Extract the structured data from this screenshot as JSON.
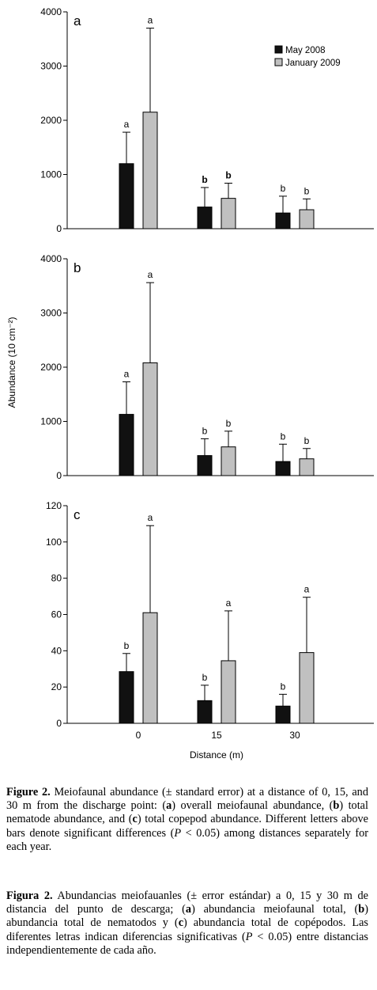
{
  "chart_data": [
    {
      "type": "bar",
      "panel_label": "a",
      "categories": [
        "0",
        "15",
        "30"
      ],
      "ylim": [
        0,
        4000
      ],
      "yticks": [
        "0",
        "1000",
        "2000",
        "3000",
        "4000"
      ],
      "series": [
        {
          "name": "May 2008",
          "color": "#111111",
          "values": [
            1200,
            400,
            290
          ],
          "errors": [
            580,
            360,
            310
          ],
          "sig": [
            "a",
            "b",
            "b"
          ],
          "sig_bold": [
            false,
            true,
            false
          ]
        },
        {
          "name": "January 2009",
          "color": "#c0c0c0",
          "values": [
            2150,
            560,
            350
          ],
          "errors": [
            1550,
            280,
            200
          ],
          "sig": [
            "a",
            "b",
            "b"
          ],
          "sig_bold": [
            false,
            true,
            false
          ]
        }
      ],
      "legend": {
        "position": "top-right"
      }
    },
    {
      "type": "bar",
      "panel_label": "b",
      "categories": [
        "0",
        "15",
        "30"
      ],
      "ylim": [
        0,
        4000
      ],
      "yticks": [
        "0",
        "1000",
        "2000",
        "3000",
        "4000"
      ],
      "series": [
        {
          "name": "May 2008",
          "color": "#111111",
          "values": [
            1130,
            370,
            260
          ],
          "errors": [
            600,
            310,
            320
          ],
          "sig": [
            "a",
            "b",
            "b"
          ]
        },
        {
          "name": "January 2009",
          "color": "#c0c0c0",
          "values": [
            2080,
            530,
            310
          ],
          "errors": [
            1480,
            290,
            190
          ],
          "sig": [
            "a",
            "b",
            "b"
          ]
        }
      ]
    },
    {
      "type": "bar",
      "panel_label": "c",
      "categories": [
        "0",
        "15",
        "30"
      ],
      "ylim": [
        0,
        120
      ],
      "yticks": [
        "0",
        "20",
        "40",
        "60",
        "80",
        "100",
        "120"
      ],
      "series": [
        {
          "name": "May 2008",
          "color": "#111111",
          "values": [
            28.5,
            12.5,
            9.5
          ],
          "errors": [
            10,
            8.5,
            6.5
          ],
          "sig": [
            "b",
            "b",
            "b"
          ]
        },
        {
          "name": "January 2009",
          "color": "#c0c0c0",
          "values": [
            61,
            34.5,
            39
          ],
          "errors": [
            48,
            27.5,
            30.5
          ],
          "sig": [
            "a",
            "a",
            "a"
          ]
        }
      ],
      "xlabel": "Distance (m)"
    }
  ],
  "shared_ylabel": "Abundance (10 cm⁻²)",
  "captions": {
    "english": {
      "label": "Figure 2.",
      "part1": " Meiofaunal abundance (± standard error) at a distance of 0, 15, and 30 m from the discharge point: (",
      "a": "a",
      "part2": ") overall meiofaunal abundance, (",
      "b": "b",
      "part3": ") total nematode abundance, and (",
      "c": "c",
      "part4": ") total copepod abundance. Different letters above bars denote significant differences (",
      "p": "P",
      "part5": " < 0.05) among distances separately for each year."
    },
    "spanish": {
      "label": "Figura 2.",
      "part1": " Abundancias meiofauanles (± error estándar) a 0, 15 y 30 m de distancia del punto de descarga; (",
      "a": "a",
      "part2": ") abundancia meiofaunal total, (",
      "b": "b",
      "part3": ") abundancia total de nematodos y (",
      "c": "c",
      "part4": ") abundancia total de copépodos. Las diferentes letras indican diferencias significativas (",
      "p": "P",
      "part5": " < 0.05) entre distancias independientemente de cada año."
    }
  }
}
